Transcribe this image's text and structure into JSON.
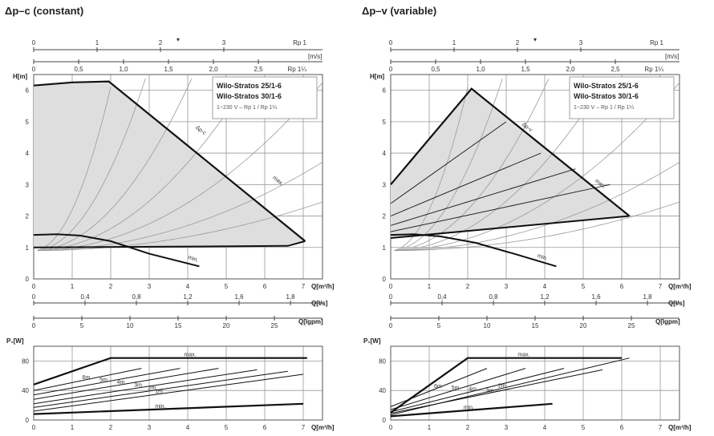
{
  "chart_data": [
    {
      "type": "line",
      "title": "Δp–c (constant)",
      "info_box": {
        "line1": "Wilo-Stratos 25/1-6",
        "line2": "Wilo-Stratos 30/1-6",
        "line3": "1~230 V – Rp 1 / Rp 1¼"
      },
      "velocity_axes": {
        "unit": "[m/s]",
        "rp1_label": "Rp 1",
        "rp114_label": "Rp 1¼",
        "rp1_ticks": [
          "0",
          "1",
          "2",
          "3"
        ],
        "rp114_ticks": [
          "0",
          "0,5",
          "1,0",
          "1,5",
          "2,0",
          "2,5"
        ]
      },
      "head_chart": {
        "ylabel": "H[m]",
        "xlabel": "Q[m³/h]",
        "xlim": [
          0,
          7.5
        ],
        "ylim": [
          0,
          6.5
        ],
        "x_ticks": [
          "0",
          "1",
          "2",
          "3",
          "4",
          "5",
          "6",
          "7"
        ],
        "y_ticks": [
          "0",
          "1",
          "2",
          "3",
          "4",
          "5",
          "6"
        ],
        "series": [
          {
            "name": "max.",
            "x": [
              0,
              1,
              1.95,
              7.05
            ],
            "y": [
              6.15,
              6.25,
              6.28,
              1.2
            ]
          },
          {
            "name": "min.",
            "x": [
              0,
              0.6,
              1.2,
              2,
              3,
              4.3
            ],
            "y": [
              1.4,
              1.42,
              1.38,
              1.2,
              0.8,
              0.4
            ]
          },
          {
            "name": "",
            "x": [
              0,
              6.6,
              7.05
            ],
            "y": [
              1.0,
              1.05,
              1.2
            ]
          }
        ],
        "curve_labels": [
          "Δp-c",
          "max.",
          "min."
        ]
      },
      "flow_axes": {
        "ls_unit": "Q[l/s]",
        "ls_ticks": [
          "0",
          "0,4",
          "0,8",
          "1,2",
          "1,6",
          "1,8"
        ],
        "gpm_unit": "Q[Igpm]",
        "gpm_ticks": [
          "0",
          "5",
          "10",
          "15",
          "20",
          "25"
        ]
      },
      "power_chart": {
        "ylabel": "P₁[W]",
        "xlabel": "Q[m³/h]",
        "xlim": [
          0,
          7.5
        ],
        "ylim": [
          0,
          100
        ],
        "x_ticks": [
          "0",
          "1",
          "2",
          "3",
          "4",
          "5",
          "6",
          "7"
        ],
        "y_ticks": [
          "0",
          "40",
          "80"
        ],
        "series": [
          {
            "name": "max.",
            "x": [
              0,
              2,
              7.1
            ],
            "y": [
              48,
              84,
              84
            ]
          },
          {
            "name": "6m",
            "x": [
              0,
              2.8
            ],
            "y": [
              40,
              70
            ]
          },
          {
            "name": "5m",
            "x": [
              0,
              3.8
            ],
            "y": [
              34,
              70
            ]
          },
          {
            "name": "4m",
            "x": [
              0,
              4.8
            ],
            "y": [
              28,
              70
            ]
          },
          {
            "name": "3m",
            "x": [
              0,
              5.8
            ],
            "y": [
              22,
              68
            ]
          },
          {
            "name": "2m",
            "x": [
              0,
              6.6
            ],
            "y": [
              17,
              66
            ]
          },
          {
            "name": "1m",
            "x": [
              0,
              7
            ],
            "y": [
              12,
              62
            ]
          },
          {
            "name": "min.",
            "x": [
              0,
              7
            ],
            "y": [
              8,
              22
            ]
          }
        ]
      }
    },
    {
      "type": "line",
      "title": "Δp–v (variable)",
      "info_box": {
        "line1": "Wilo-Stratos 25/1-6",
        "line2": "Wilo-Stratos 30/1-6",
        "line3": "1~230 V – Rp 1 / Rp 1¼"
      },
      "velocity_axes": {
        "unit": "[m/s]",
        "rp1_label": "Rp 1",
        "rp114_label": "Rp 1¼",
        "rp1_ticks": [
          "0",
          "1",
          "2",
          "3"
        ],
        "rp114_ticks": [
          "0",
          "0,5",
          "1,0",
          "1,5",
          "2,0",
          "2,5"
        ]
      },
      "head_chart": {
        "ylabel": "H[m]",
        "xlabel": "Q[m³/h]",
        "xlim": [
          0,
          7.5
        ],
        "ylim": [
          0,
          6.5
        ],
        "x_ticks": [
          "0",
          "1",
          "2",
          "3",
          "4",
          "5",
          "6",
          "7"
        ],
        "y_ticks": [
          "0",
          "1",
          "2",
          "3",
          "4",
          "5",
          "6"
        ],
        "series": [
          {
            "name": "max.",
            "x": [
              0,
              2.1,
              6.2
            ],
            "y": [
              3.0,
              6.05,
              2.0
            ]
          },
          {
            "name": "",
            "x": [
              0,
              6.2
            ],
            "y": [
              1.3,
              2.0
            ]
          },
          {
            "name": "min.",
            "x": [
              0,
              0.6,
              1.3,
              2.2,
              3.2,
              4.3
            ],
            "y": [
              1.4,
              1.42,
              1.35,
              1.15,
              0.8,
              0.4
            ]
          }
        ],
        "curve_labels": [
          "Δp-v",
          "max.",
          "min."
        ]
      },
      "flow_axes": {
        "ls_unit": "Q[l/s]",
        "ls_ticks": [
          "0",
          "0,4",
          "0,8",
          "1,2",
          "1,6",
          "1,8"
        ],
        "gpm_unit": "Q[Igpm]",
        "gpm_ticks": [
          "0",
          "5",
          "10",
          "15",
          "20",
          "25"
        ]
      },
      "power_chart": {
        "ylabel": "P₁[W]",
        "xlabel": "Q[m³/h]",
        "xlim": [
          0,
          7.5
        ],
        "ylim": [
          0,
          100
        ],
        "x_ticks": [
          "0",
          "1",
          "2",
          "3",
          "4",
          "5",
          "6",
          "7"
        ],
        "y_ticks": [
          "0",
          "40",
          "80"
        ],
        "series": [
          {
            "name": "max.",
            "x": [
              0,
              2,
              6
            ],
            "y": [
              10,
              84,
              84
            ]
          },
          {
            "name": "6m",
            "x": [
              0,
              2.5
            ],
            "y": [
              18,
              70
            ]
          },
          {
            "name": "5m",
            "x": [
              0,
              3.5
            ],
            "y": [
              14,
              70
            ]
          },
          {
            "name": "4m",
            "x": [
              0,
              4.5
            ],
            "y": [
              11,
              70
            ]
          },
          {
            "name": "3m",
            "x": [
              0,
              5.5
            ],
            "y": [
              9,
              68
            ]
          },
          {
            "name": "2m",
            "x": [
              0,
              6.2
            ],
            "y": [
              7,
              84
            ]
          },
          {
            "name": "min.",
            "x": [
              0,
              4.2
            ],
            "y": [
              5,
              22
            ]
          }
        ]
      }
    }
  ]
}
